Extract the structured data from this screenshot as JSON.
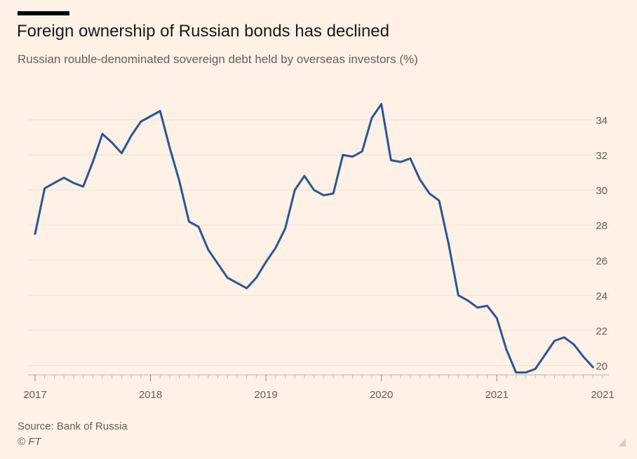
{
  "header": {
    "title": "Foreign ownership of Russian bonds has declined",
    "subtitle": "Russian rouble-denominated sovereign debt held by overseas investors (%)"
  },
  "footer": {
    "source": "Source: Bank of Russia",
    "copyright": "© FT"
  },
  "colors": {
    "line": "#2a5599",
    "grid": "#f3dfd0",
    "axis": "#66605c",
    "background": "#fff1e5"
  },
  "chart_data": {
    "type": "line",
    "ylim": [
      19.5,
      35
    ],
    "xlim": [
      "2017-01",
      "2021-12"
    ],
    "y_ticks": [
      20,
      22,
      24,
      26,
      28,
      30,
      32,
      34
    ],
    "x_tick_labels": [
      "2017",
      "2018",
      "2019",
      "2020",
      "2021",
      "2021"
    ],
    "y_axis_position": "right",
    "grid": "horizontal",
    "series": [
      {
        "x": [
          "2017-01",
          "2017-02",
          "2017-03",
          "2017-04",
          "2017-05",
          "2017-06",
          "2017-07",
          "2017-08",
          "2017-09",
          "2017-10",
          "2017-11",
          "2017-12",
          "2018-01",
          "2018-02",
          "2018-03",
          "2018-04",
          "2018-05",
          "2018-06",
          "2018-07",
          "2018-08",
          "2018-09",
          "2018-10",
          "2018-11",
          "2018-12",
          "2019-01",
          "2019-02",
          "2019-03",
          "2019-04",
          "2019-05",
          "2019-06",
          "2019-07",
          "2019-08",
          "2019-09",
          "2019-10",
          "2019-11",
          "2019-12",
          "2020-01",
          "2020-02",
          "2020-03",
          "2020-04",
          "2020-05",
          "2020-06",
          "2020-07",
          "2020-08",
          "2020-09",
          "2020-10",
          "2020-11",
          "2020-12",
          "2021-01",
          "2021-02",
          "2021-03",
          "2021-04",
          "2021-05",
          "2021-06",
          "2021-07",
          "2021-08",
          "2021-09",
          "2021-10",
          "2021-11",
          "2021-12"
        ],
        "values": [
          27.5,
          30.1,
          30.4,
          30.7,
          30.4,
          30.2,
          31.6,
          33.2,
          32.7,
          32.1,
          33.1,
          33.9,
          34.2,
          34.5,
          32.4,
          30.5,
          28.2,
          27.9,
          26.6,
          25.8,
          25.0,
          24.7,
          24.4,
          25.0,
          25.9,
          26.7,
          27.8,
          30.0,
          30.8,
          30.0,
          29.7,
          29.8,
          32.0,
          31.9,
          32.2,
          34.1,
          34.9,
          31.7,
          31.6,
          31.8,
          30.6,
          29.8,
          29.4,
          26.9,
          24.0,
          23.7,
          23.3,
          23.4,
          22.7,
          20.9,
          19.6,
          19.6,
          19.8,
          20.6,
          21.4,
          21.6,
          21.2,
          20.5,
          19.9,
          null
        ]
      }
    ]
  }
}
